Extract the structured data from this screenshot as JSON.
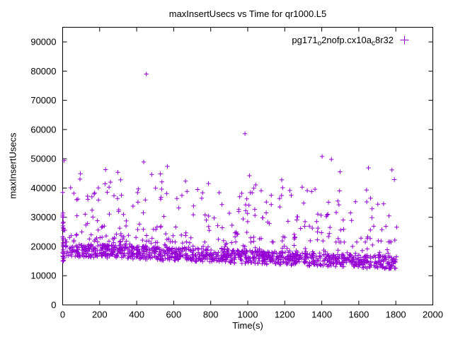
{
  "chart_data": {
    "type": "scatter",
    "title": "maxInsertUsecs vs Time for qr1000.L5",
    "xlabel": "Time(s)",
    "ylabel": "maxInsertUsecs",
    "xlim": [
      0,
      2000
    ],
    "ylim": [
      0,
      95000
    ],
    "xticks": [
      0,
      200,
      400,
      600,
      800,
      1000,
      1200,
      1400,
      1600,
      1800,
      2000
    ],
    "yticks": [
      0,
      10000,
      20000,
      30000,
      40000,
      50000,
      60000,
      70000,
      80000,
      90000
    ],
    "grid": false,
    "legend_position": "top-right-inside",
    "legend": {
      "text": "pg171o2nofp.cx10ac8r32",
      "segments": [
        {
          "t": "pg171"
        },
        {
          "t": "o",
          "sub": true
        },
        {
          "t": "2nofp.cx10a"
        },
        {
          "t": "c",
          "sub": true
        },
        {
          "t": "8r32"
        }
      ]
    },
    "marker": {
      "shape": "plus",
      "color": "#9400d3",
      "size": 7
    },
    "axes_color": "#000000",
    "background": "#ffffff",
    "series": [
      {
        "name": "pg171_o2nofp.cx10a_c8r32",
        "outliers": [
          [
            452,
            79000
          ],
          [
            985,
            58600
          ],
          [
            1402,
            50800
          ],
          [
            1452,
            49800
          ],
          [
            8,
            49400
          ],
          [
            438,
            48900
          ],
          [
            566,
            47400
          ],
          [
            232,
            46300
          ],
          [
            1652,
            46900
          ],
          [
            1779,
            46200
          ],
          [
            96,
            44900
          ],
          [
            298,
            45400
          ]
        ],
        "cluster_band": {
          "seed": 42,
          "count": 1150,
          "x_range": [
            0,
            1805
          ],
          "y_base_start": 18600,
          "y_base_end": 14200,
          "y_spread": 3000,
          "y_min": 10600
        },
        "cluster_mid": {
          "seed": 7,
          "count": 215,
          "x_range": [
            0,
            1805
          ],
          "y_range": [
            21500,
            40500
          ],
          "decay": 2.1
        },
        "cluster_high": {
          "seed": 13,
          "count": 34,
          "x_range": [
            10,
            1800
          ],
          "y_range": [
            36000,
            46000
          ],
          "decay": 1.4
        },
        "cluster_left_edge": {
          "seed": 99,
          "count": 26,
          "x_max": 16,
          "y_range": [
            15000,
            39000
          ],
          "decay": 2.3
        }
      }
    ]
  }
}
